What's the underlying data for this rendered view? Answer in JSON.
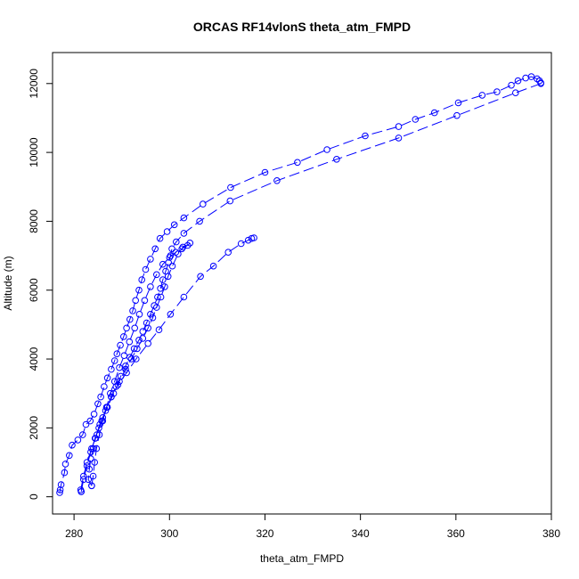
{
  "chart_data": {
    "type": "scatter",
    "title": "ORCAS RF14vlonS theta_atm_FMPD",
    "xlabel": "theta_atm_FMPD",
    "ylabel": "Altitude (m)",
    "xlim": [
      275.5,
      380
    ],
    "ylim": [
      -500,
      12900
    ],
    "xticks": [
      280,
      300,
      320,
      340,
      360,
      380
    ],
    "yticks": [
      0,
      2000,
      4000,
      6000,
      8000,
      10000,
      12000
    ],
    "grid": false,
    "marker": "open-circle",
    "line_style": "dashed",
    "color": "#0000ff",
    "series": [
      {
        "values": [
          [
            277.0,
            120
          ],
          [
            277.1,
            200
          ],
          [
            277.3,
            350
          ],
          [
            278.0,
            700
          ],
          [
            278.2,
            950
          ],
          [
            279.0,
            1200
          ],
          [
            279.6,
            1500
          ],
          [
            280.8,
            1650
          ],
          [
            281.8,
            1800
          ],
          [
            282.5,
            2100
          ],
          [
            283.4,
            2200
          ],
          [
            284.2,
            2400
          ],
          [
            285.0,
            2700
          ],
          [
            285.6,
            2900
          ],
          [
            286.3,
            3200
          ],
          [
            287.0,
            3450
          ],
          [
            287.8,
            3700
          ],
          [
            288.5,
            3950
          ],
          [
            289.0,
            4150
          ],
          [
            289.7,
            4400
          ],
          [
            290.4,
            4650
          ],
          [
            291.0,
            4900
          ],
          [
            291.7,
            5150
          ],
          [
            292.3,
            5400
          ],
          [
            292.9,
            5700
          ],
          [
            293.6,
            6000
          ],
          [
            294.2,
            6300
          ],
          [
            295.0,
            6600
          ],
          [
            296.0,
            6900
          ],
          [
            297.0,
            7200
          ],
          [
            298.0,
            7500
          ],
          [
            299.5,
            7700
          ],
          [
            301.0,
            7900
          ],
          [
            303.0,
            8100
          ],
          [
            307.0,
            8500
          ],
          [
            312.8,
            8980
          ],
          [
            320.0,
            9420
          ],
          [
            326.8,
            9710
          ],
          [
            333.0,
            10080
          ],
          [
            341.0,
            10480
          ],
          [
            348.0,
            10750
          ],
          [
            351.5,
            10960
          ],
          [
            355.5,
            11150
          ],
          [
            360.5,
            11440
          ],
          [
            365.5,
            11660
          ],
          [
            368.6,
            11760
          ],
          [
            371.6,
            11950
          ],
          [
            373.0,
            12080
          ],
          [
            374.6,
            12160
          ],
          [
            375.8,
            12200
          ],
          [
            377.0,
            12140
          ],
          [
            377.5,
            12080
          ],
          [
            377.8,
            12020
          ]
        ]
      },
      {
        "values": [
          [
            377.8,
            12000
          ],
          [
            372.5,
            11730
          ],
          [
            360.2,
            11070
          ],
          [
            348.0,
            10420
          ],
          [
            335.0,
            9800
          ],
          [
            322.5,
            9180
          ],
          [
            312.7,
            8590
          ],
          [
            306.3,
            8000
          ],
          [
            303.0,
            7650
          ],
          [
            301.4,
            7400
          ],
          [
            300.5,
            7200
          ],
          [
            300.2,
            7000
          ],
          [
            299.8,
            6800
          ],
          [
            299.2,
            6550
          ],
          [
            298.6,
            6300
          ],
          [
            298.1,
            6050
          ],
          [
            297.5,
            5800
          ],
          [
            296.8,
            5550
          ],
          [
            296.0,
            5300
          ],
          [
            295.2,
            5050
          ],
          [
            294.4,
            4800
          ],
          [
            293.6,
            4550
          ],
          [
            292.6,
            4300
          ],
          [
            291.7,
            4050
          ],
          [
            290.8,
            3800
          ],
          [
            289.8,
            3500
          ],
          [
            288.8,
            3200
          ],
          [
            287.8,
            2900
          ],
          [
            286.8,
            2600
          ],
          [
            286.0,
            2300
          ],
          [
            285.2,
            2000
          ],
          [
            284.5,
            1700
          ],
          [
            284.0,
            1400
          ],
          [
            283.5,
            1100
          ],
          [
            283.2,
            800
          ],
          [
            283.0,
            500
          ],
          [
            283.7,
            320
          ]
        ]
      },
      {
        "values": [
          [
            283.7,
            320
          ],
          [
            284.0,
            600
          ],
          [
            284.3,
            1000
          ],
          [
            284.7,
            1400
          ],
          [
            285.3,
            1800
          ],
          [
            286.0,
            2200
          ],
          [
            286.8,
            2600
          ],
          [
            287.6,
            3000
          ],
          [
            288.5,
            3350
          ],
          [
            289.5,
            3750
          ],
          [
            290.5,
            4100
          ],
          [
            291.6,
            4500
          ],
          [
            292.7,
            4900
          ],
          [
            293.7,
            5300
          ],
          [
            294.8,
            5700
          ],
          [
            296.0,
            6100
          ],
          [
            297.3,
            6450
          ],
          [
            298.6,
            6750
          ],
          [
            300.0,
            6950
          ],
          [
            301.3,
            7100
          ],
          [
            302.6,
            7200
          ],
          [
            303.8,
            7300
          ],
          [
            304.3,
            7370
          ],
          [
            302.8,
            7250
          ],
          [
            301.8,
            7050
          ],
          [
            300.6,
            6700
          ],
          [
            299.7,
            6400
          ],
          [
            299.0,
            6100
          ],
          [
            298.2,
            5800
          ],
          [
            297.3,
            5500
          ],
          [
            296.5,
            5200
          ],
          [
            295.5,
            4900
          ],
          [
            294.4,
            4600
          ],
          [
            293.2,
            4300
          ],
          [
            292.0,
            4000
          ],
          [
            290.8,
            3700
          ],
          [
            289.5,
            3350
          ],
          [
            288.3,
            3000
          ],
          [
            287.0,
            2600
          ],
          [
            285.8,
            2200
          ],
          [
            284.8,
            1800
          ],
          [
            283.7,
            1400
          ],
          [
            282.7,
            1000
          ],
          [
            282.0,
            600
          ],
          [
            281.4,
            200
          ],
          [
            281.5,
            150
          ]
        ]
      },
      {
        "values": [
          [
            281.5,
            150
          ],
          [
            282.0,
            500
          ],
          [
            282.7,
            900
          ],
          [
            283.5,
            1300
          ],
          [
            284.4,
            1700
          ],
          [
            285.4,
            2100
          ],
          [
            286.6,
            2500
          ],
          [
            287.8,
            2900
          ],
          [
            289.2,
            3250
          ],
          [
            291.0,
            3600
          ],
          [
            293.0,
            4000
          ],
          [
            295.5,
            4450
          ],
          [
            297.8,
            4850
          ],
          [
            300.2,
            5300
          ],
          [
            303.0,
            5800
          ],
          [
            306.5,
            6400
          ],
          [
            309.2,
            6700
          ],
          [
            312.3,
            7100
          ],
          [
            315.0,
            7350
          ],
          [
            316.5,
            7450
          ],
          [
            317.2,
            7500
          ],
          [
            317.7,
            7520
          ]
        ]
      }
    ]
  }
}
